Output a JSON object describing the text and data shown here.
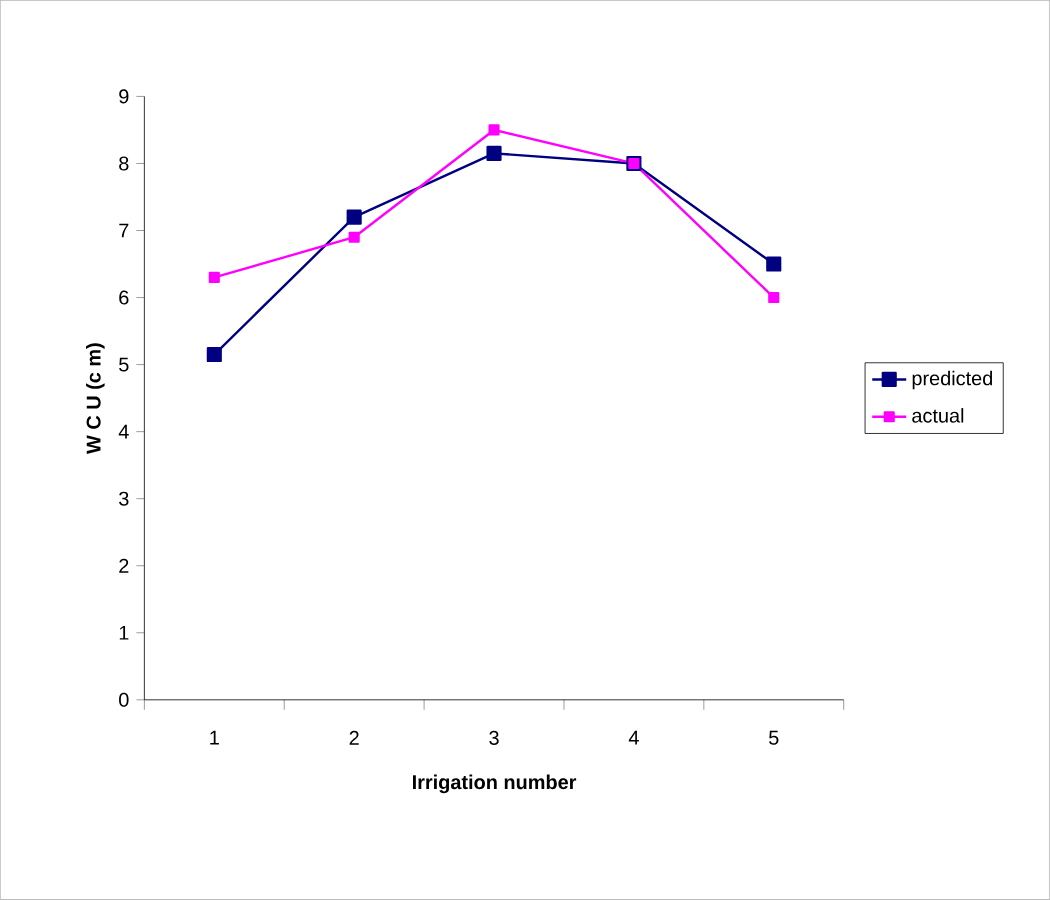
{
  "chart_data": {
    "type": "line",
    "xlabel": "Irrigation number",
    "ylabel": "W C U  (c m)",
    "categories": [
      "1",
      "2",
      "3",
      "4",
      "5"
    ],
    "series": [
      {
        "name": "predicted",
        "color": "#000080",
        "values": [
          5.15,
          7.2,
          8.15,
          8.0,
          6.5
        ]
      },
      {
        "name": "actual",
        "color": "#ff00ff",
        "values": [
          6.3,
          6.9,
          8.5,
          8.0,
          6.0
        ]
      }
    ],
    "ylim": [
      0,
      9
    ],
    "yticks": [
      0,
      1,
      2,
      3,
      4,
      5,
      6,
      7,
      8,
      9
    ],
    "grid": false,
    "legend": "right",
    "marker": "square",
    "line_style": "solid"
  }
}
